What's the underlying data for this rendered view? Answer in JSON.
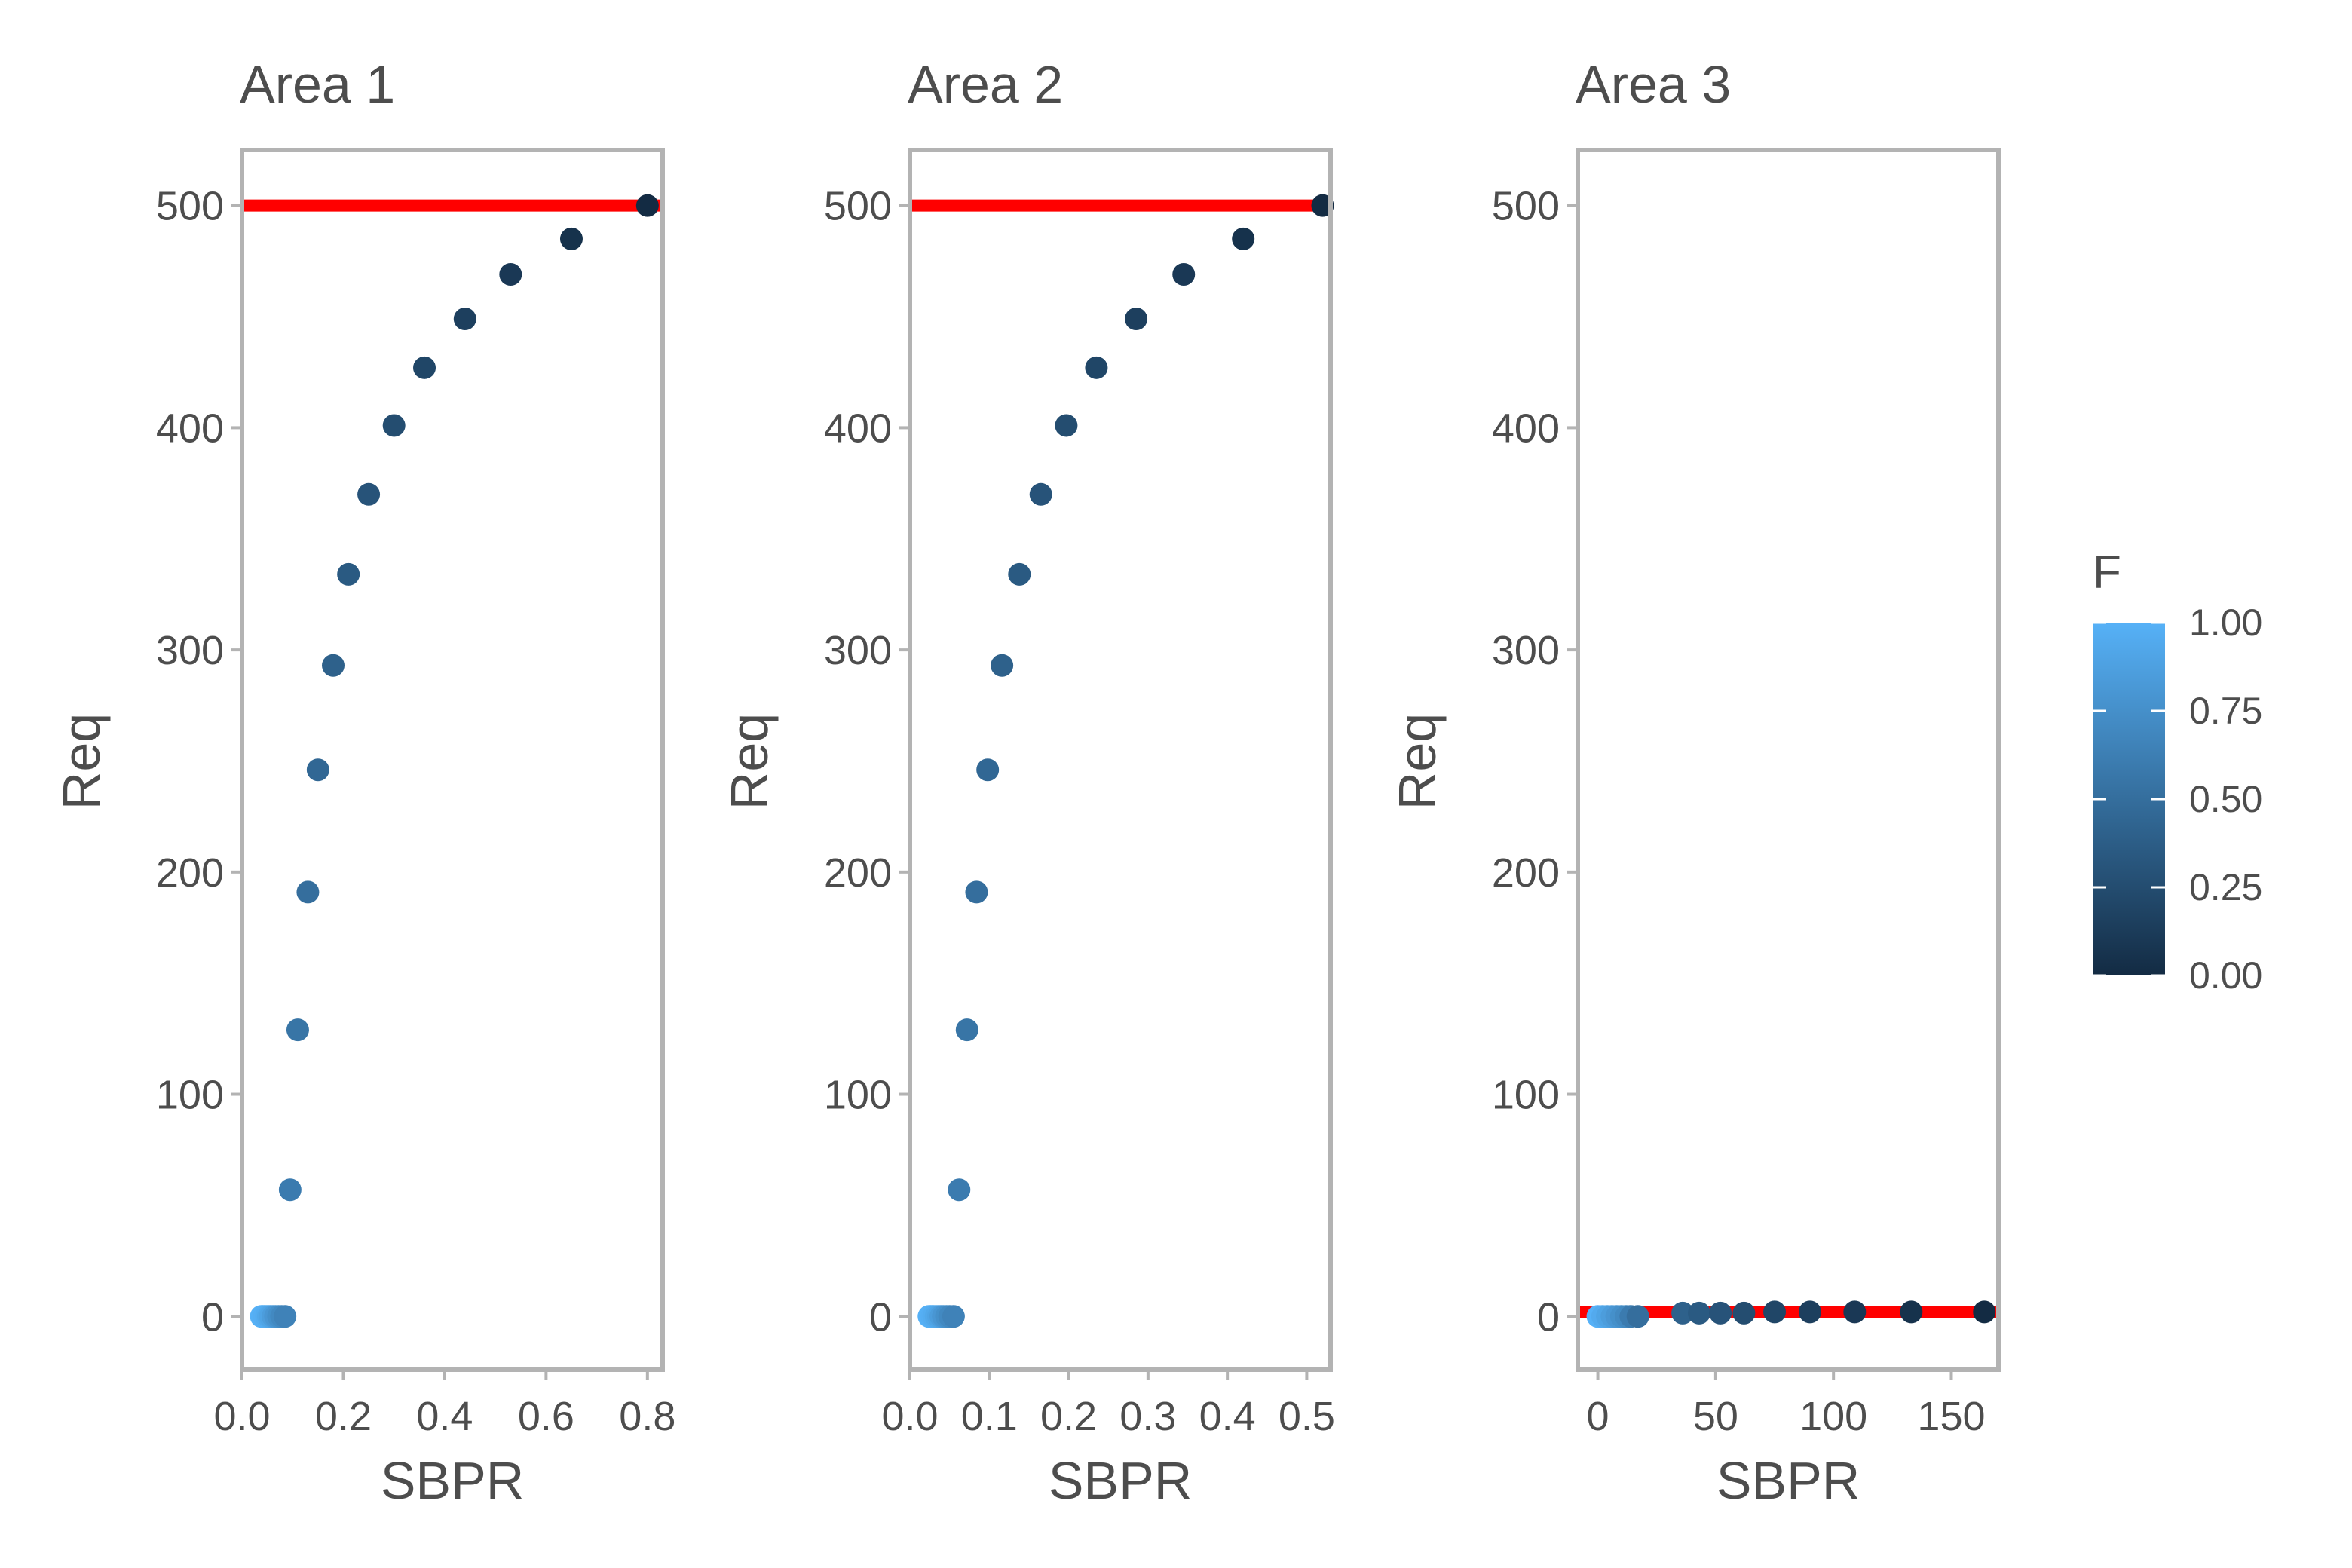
{
  "chart_data": {
    "type": "scatter",
    "x_label": "SBPR",
    "y_label": "Req",
    "legend": {
      "title": "F",
      "range": [
        0,
        1
      ],
      "ticks": [
        {
          "value": 1.0,
          "label": "1.00"
        },
        {
          "value": 0.75,
          "label": "0.75"
        },
        {
          "value": 0.5,
          "label": "0.50"
        },
        {
          "value": 0.25,
          "label": "0.25"
        },
        {
          "value": 0.0,
          "label": "0.00"
        }
      ],
      "low_color": "#132b43",
      "high_color": "#56b1f7",
      "placement": "right"
    },
    "reference_line_color": "#ff0000",
    "panels": [
      {
        "title": "Area 1",
        "xlim": [
          0.0,
          0.83
        ],
        "ylim": [
          -24,
          525
        ],
        "x_ticks": [
          {
            "value": 0.0,
            "label": "0.0"
          },
          {
            "value": 0.2,
            "label": "0.2"
          },
          {
            "value": 0.4,
            "label": "0.4"
          },
          {
            "value": 0.6,
            "label": "0.6"
          },
          {
            "value": 0.8,
            "label": "0.8"
          }
        ],
        "y_ticks": [
          {
            "value": 0,
            "label": "0"
          },
          {
            "value": 100,
            "label": "100"
          },
          {
            "value": 200,
            "label": "200"
          },
          {
            "value": 300,
            "label": "300"
          },
          {
            "value": 400,
            "label": "400"
          },
          {
            "value": 500,
            "label": "500"
          }
        ],
        "reference_y": 500,
        "points": [
          {
            "x": 0.8,
            "y": 500,
            "F": 0.0
          },
          {
            "x": 0.65,
            "y": 485,
            "F": 0.05
          },
          {
            "x": 0.53,
            "y": 469,
            "F": 0.1
          },
          {
            "x": 0.44,
            "y": 449,
            "F": 0.15
          },
          {
            "x": 0.36,
            "y": 427,
            "F": 0.2
          },
          {
            "x": 0.3,
            "y": 401,
            "F": 0.25
          },
          {
            "x": 0.25,
            "y": 370,
            "F": 0.3
          },
          {
            "x": 0.21,
            "y": 334,
            "F": 0.35
          },
          {
            "x": 0.18,
            "y": 293,
            "F": 0.4
          },
          {
            "x": 0.15,
            "y": 246,
            "F": 0.45
          },
          {
            "x": 0.13,
            "y": 191,
            "F": 0.5
          },
          {
            "x": 0.11,
            "y": 129,
            "F": 0.55
          },
          {
            "x": 0.095,
            "y": 57,
            "F": 0.6
          },
          {
            "x": 0.085,
            "y": 0,
            "F": 0.65
          },
          {
            "x": 0.078,
            "y": 0,
            "F": 0.7
          },
          {
            "x": 0.072,
            "y": 0,
            "F": 0.75
          },
          {
            "x": 0.066,
            "y": 0,
            "F": 0.8
          },
          {
            "x": 0.061,
            "y": 0,
            "F": 0.85
          },
          {
            "x": 0.056,
            "y": 0,
            "F": 0.9
          },
          {
            "x": 0.052,
            "y": 0,
            "F": 0.93
          },
          {
            "x": 0.048,
            "y": 0,
            "F": 0.96
          },
          {
            "x": 0.044,
            "y": 0,
            "F": 0.98
          },
          {
            "x": 0.041,
            "y": 0,
            "F": 0.99
          },
          {
            "x": 0.038,
            "y": 0,
            "F": 1.0
          }
        ]
      },
      {
        "title": "Area 2",
        "xlim": [
          0.0,
          0.53
        ],
        "ylim": [
          -24,
          525
        ],
        "x_ticks": [
          {
            "value": 0.0,
            "label": "0.0"
          },
          {
            "value": 0.1,
            "label": "0.1"
          },
          {
            "value": 0.2,
            "label": "0.2"
          },
          {
            "value": 0.3,
            "label": "0.3"
          },
          {
            "value": 0.4,
            "label": "0.4"
          },
          {
            "value": 0.5,
            "label": "0.5"
          }
        ],
        "y_ticks": [
          {
            "value": 0,
            "label": "0"
          },
          {
            "value": 100,
            "label": "100"
          },
          {
            "value": 200,
            "label": "200"
          },
          {
            "value": 300,
            "label": "300"
          },
          {
            "value": 400,
            "label": "400"
          },
          {
            "value": 500,
            "label": "500"
          }
        ],
        "reference_y": 500,
        "points": [
          {
            "x": 0.52,
            "y": 500,
            "F": 0.0
          },
          {
            "x": 0.42,
            "y": 485,
            "F": 0.05
          },
          {
            "x": 0.345,
            "y": 469,
            "F": 0.1
          },
          {
            "x": 0.285,
            "y": 449,
            "F": 0.15
          },
          {
            "x": 0.235,
            "y": 427,
            "F": 0.2
          },
          {
            "x": 0.197,
            "y": 401,
            "F": 0.25
          },
          {
            "x": 0.165,
            "y": 370,
            "F": 0.3
          },
          {
            "x": 0.138,
            "y": 334,
            "F": 0.35
          },
          {
            "x": 0.116,
            "y": 293,
            "F": 0.4
          },
          {
            "x": 0.098,
            "y": 246,
            "F": 0.45
          },
          {
            "x": 0.084,
            "y": 191,
            "F": 0.5
          },
          {
            "x": 0.072,
            "y": 129,
            "F": 0.55
          },
          {
            "x": 0.062,
            "y": 57,
            "F": 0.6
          },
          {
            "x": 0.055,
            "y": 0,
            "F": 0.65
          },
          {
            "x": 0.05,
            "y": 0,
            "F": 0.7
          },
          {
            "x": 0.046,
            "y": 0,
            "F": 0.75
          },
          {
            "x": 0.042,
            "y": 0,
            "F": 0.8
          },
          {
            "x": 0.039,
            "y": 0,
            "F": 0.85
          },
          {
            "x": 0.036,
            "y": 0,
            "F": 0.9
          },
          {
            "x": 0.033,
            "y": 0,
            "F": 0.93
          },
          {
            "x": 0.03,
            "y": 0,
            "F": 0.96
          },
          {
            "x": 0.028,
            "y": 0,
            "F": 0.98
          },
          {
            "x": 0.026,
            "y": 0,
            "F": 0.99
          },
          {
            "x": 0.024,
            "y": 0,
            "F": 1.0
          }
        ]
      },
      {
        "title": "Area 3",
        "xlim": [
          -8.5,
          170
        ],
        "ylim": [
          -24,
          525
        ],
        "x_ticks": [
          {
            "value": 0,
            "label": "0"
          },
          {
            "value": 50,
            "label": "50"
          },
          {
            "value": 100,
            "label": "100"
          },
          {
            "value": 150,
            "label": "150"
          }
        ],
        "y_ticks": [
          {
            "value": 0,
            "label": "0"
          },
          {
            "value": 100,
            "label": "100"
          },
          {
            "value": 200,
            "label": "200"
          },
          {
            "value": 300,
            "label": "300"
          },
          {
            "value": 400,
            "label": "400"
          },
          {
            "value": 500,
            "label": "500"
          }
        ],
        "reference_y": 2,
        "points": [
          {
            "x": 164,
            "y": 2,
            "F": 0.0
          },
          {
            "x": 133,
            "y": 2,
            "F": 0.05
          },
          {
            "x": 109,
            "y": 2,
            "F": 0.1
          },
          {
            "x": 90,
            "y": 2,
            "F": 0.15
          },
          {
            "x": 75,
            "y": 2,
            "F": 0.2
          },
          {
            "x": 62,
            "y": 1.5,
            "F": 0.25
          },
          {
            "x": 52,
            "y": 1.5,
            "F": 0.3
          },
          {
            "x": 43,
            "y": 1.5,
            "F": 0.35
          },
          {
            "x": 36,
            "y": 1.5,
            "F": 0.4
          },
          {
            "x": 17,
            "y": 0,
            "F": 0.5
          },
          {
            "x": 14,
            "y": 0,
            "F": 0.6
          },
          {
            "x": 12,
            "y": 0,
            "F": 0.7
          },
          {
            "x": 10,
            "y": 0,
            "F": 0.75
          },
          {
            "x": 8,
            "y": 0,
            "F": 0.8
          },
          {
            "x": 6,
            "y": 0,
            "F": 0.85
          },
          {
            "x": 4,
            "y": 0,
            "F": 0.9
          },
          {
            "x": 2,
            "y": 0,
            "F": 0.95
          },
          {
            "x": 0,
            "y": 0,
            "F": 1.0
          }
        ]
      }
    ]
  }
}
